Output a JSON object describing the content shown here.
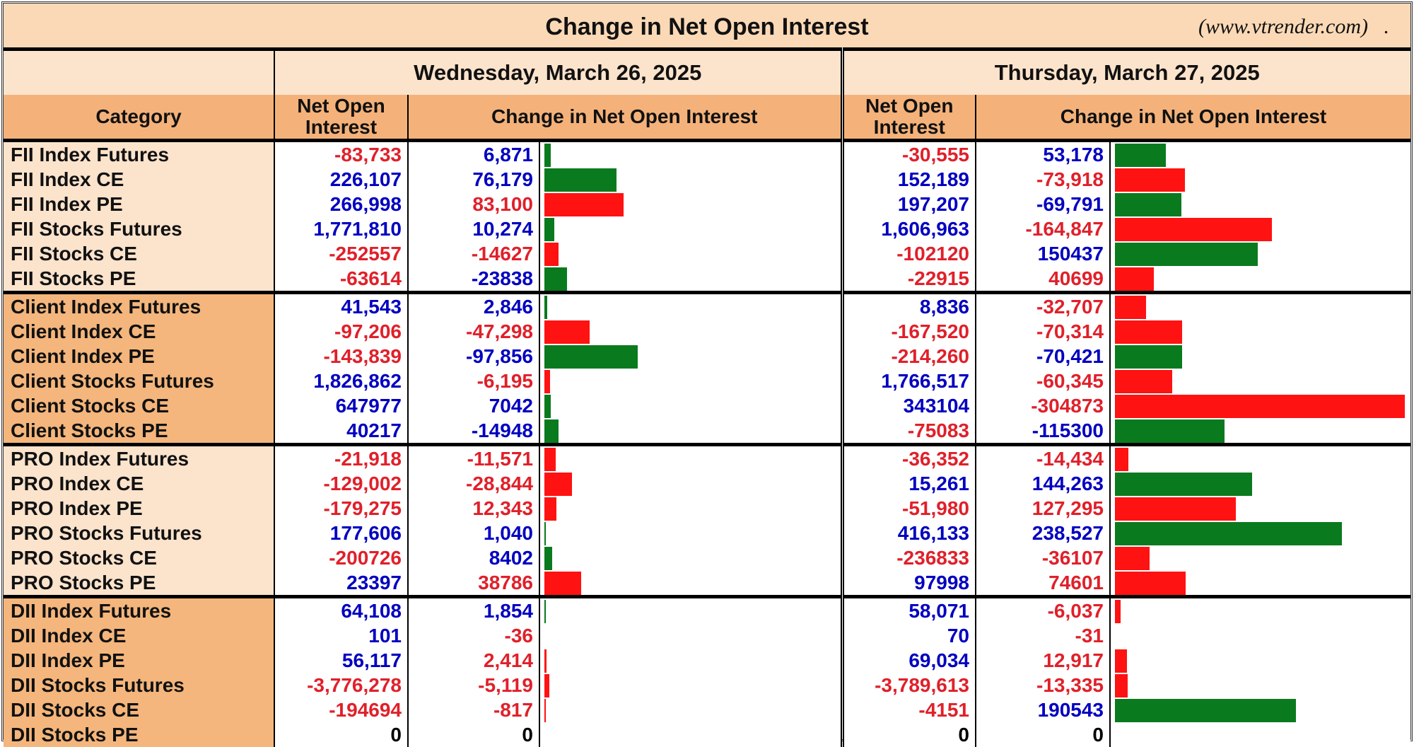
{
  "header": {
    "title": "Change in Net Open Interest",
    "site": "(www.vtrender.com)",
    "dot": ".",
    "category_label": "Category",
    "noi_label_1": "Net Open",
    "noi_label_2": "Interest",
    "change_label": "Change in Net Open Interest",
    "dates": [
      "Wednesday, March 26, 2025",
      "Thursday, March 27, 2025"
    ]
  },
  "colors": {
    "blue": "#0000c0",
    "red": "#e0202a",
    "black": "#000000",
    "bar_green": "#0a7a1e",
    "bar_red": "#ff1212",
    "light": "#fbe3cc",
    "dark": "#f4b67c"
  },
  "chart_data": {
    "type": "bar",
    "title": "Change in Net Open Interest",
    "orientation": "horizontal",
    "note": "bar length = |change|; bar color green when value shown in blue, red when shown in red",
    "groups": [
      {
        "name": "FII",
        "shade": "light",
        "rows": [
          {
            "category": "FII Index Futures",
            "d1": {
              "noi": "-83,733",
              "noi_c": "red",
              "chg": "6,871",
              "chg_c": "blue",
              "v": 6871
            },
            "d2": {
              "noi": "-30,555",
              "noi_c": "red",
              "chg": "53,178",
              "chg_c": "blue",
              "v": 53178
            }
          },
          {
            "category": "FII Index CE",
            "d1": {
              "noi": "226,107",
              "noi_c": "blue",
              "chg": "76,179",
              "chg_c": "blue",
              "v": 76179
            },
            "d2": {
              "noi": "152,189",
              "noi_c": "blue",
              "chg": "-73,918",
              "chg_c": "red",
              "v": -73918
            }
          },
          {
            "category": "FII Index PE",
            "d1": {
              "noi": "266,998",
              "noi_c": "blue",
              "chg": "83,100",
              "chg_c": "red",
              "v": 83100
            },
            "d2": {
              "noi": "197,207",
              "noi_c": "blue",
              "chg": "-69,791",
              "chg_c": "blue",
              "v": -69791
            }
          },
          {
            "category": "FII Stocks Futures",
            "d1": {
              "noi": "1,771,810",
              "noi_c": "blue",
              "chg": "10,274",
              "chg_c": "blue",
              "v": 10274
            },
            "d2": {
              "noi": "1,606,963",
              "noi_c": "blue",
              "chg": "-164,847",
              "chg_c": "red",
              "v": -164847
            }
          },
          {
            "category": "FII Stocks CE",
            "d1": {
              "noi": "-252557",
              "noi_c": "red",
              "chg": "-14627",
              "chg_c": "red",
              "v": -14627
            },
            "d2": {
              "noi": "-102120",
              "noi_c": "red",
              "chg": "150437",
              "chg_c": "blue",
              "v": 150437
            }
          },
          {
            "category": "FII Stocks PE",
            "d1": {
              "noi": "-63614",
              "noi_c": "red",
              "chg": "-23838",
              "chg_c": "blue",
              "v": -23838
            },
            "d2": {
              "noi": "-22915",
              "noi_c": "red",
              "chg": "40699",
              "chg_c": "red",
              "v": 40699
            }
          }
        ]
      },
      {
        "name": "Client",
        "shade": "dark",
        "rows": [
          {
            "category": "Client Index Futures",
            "d1": {
              "noi": "41,543",
              "noi_c": "blue",
              "chg": "2,846",
              "chg_c": "blue",
              "v": 2846
            },
            "d2": {
              "noi": "8,836",
              "noi_c": "blue",
              "chg": "-32,707",
              "chg_c": "red",
              "v": -32707
            }
          },
          {
            "category": "Client Index CE",
            "d1": {
              "noi": "-97,206",
              "noi_c": "red",
              "chg": "-47,298",
              "chg_c": "red",
              "v": -47298
            },
            "d2": {
              "noi": "-167,520",
              "noi_c": "red",
              "chg": "-70,314",
              "chg_c": "red",
              "v": -70314
            }
          },
          {
            "category": "Client Index PE",
            "d1": {
              "noi": "-143,839",
              "noi_c": "red",
              "chg": "-97,856",
              "chg_c": "blue",
              "v": -97856
            },
            "d2": {
              "noi": "-214,260",
              "noi_c": "red",
              "chg": "-70,421",
              "chg_c": "blue",
              "v": -70421
            }
          },
          {
            "category": "Client Stocks Futures",
            "d1": {
              "noi": "1,826,862",
              "noi_c": "blue",
              "chg": "-6,195",
              "chg_c": "red",
              "v": -6195
            },
            "d2": {
              "noi": "1,766,517",
              "noi_c": "blue",
              "chg": "-60,345",
              "chg_c": "red",
              "v": -60345
            }
          },
          {
            "category": "Client Stocks CE",
            "d1": {
              "noi": "647977",
              "noi_c": "blue",
              "chg": "7042",
              "chg_c": "blue",
              "v": 7042
            },
            "d2": {
              "noi": "343104",
              "noi_c": "blue",
              "chg": "-304873",
              "chg_c": "red",
              "v": -304873
            }
          },
          {
            "category": "Client Stocks PE",
            "d1": {
              "noi": "40217",
              "noi_c": "blue",
              "chg": "-14948",
              "chg_c": "blue",
              "v": -14948
            },
            "d2": {
              "noi": "-75083",
              "noi_c": "red",
              "chg": "-115300",
              "chg_c": "blue",
              "v": -115300
            }
          }
        ]
      },
      {
        "name": "PRO",
        "shade": "light",
        "rows": [
          {
            "category": "PRO Index Futures",
            "d1": {
              "noi": "-21,918",
              "noi_c": "red",
              "chg": "-11,571",
              "chg_c": "red",
              "v": -11571
            },
            "d2": {
              "noi": "-36,352",
              "noi_c": "red",
              "chg": "-14,434",
              "chg_c": "red",
              "v": -14434
            }
          },
          {
            "category": "PRO Index CE",
            "d1": {
              "noi": "-129,002",
              "noi_c": "red",
              "chg": "-28,844",
              "chg_c": "red",
              "v": -28844
            },
            "d2": {
              "noi": "15,261",
              "noi_c": "blue",
              "chg": "144,263",
              "chg_c": "blue",
              "v": 144263
            }
          },
          {
            "category": "PRO Index PE",
            "d1": {
              "noi": "-179,275",
              "noi_c": "red",
              "chg": "12,343",
              "chg_c": "red",
              "v": 12343
            },
            "d2": {
              "noi": "-51,980",
              "noi_c": "red",
              "chg": "127,295",
              "chg_c": "red",
              "v": 127295
            }
          },
          {
            "category": "PRO Stocks Futures",
            "d1": {
              "noi": "177,606",
              "noi_c": "blue",
              "chg": "1,040",
              "chg_c": "blue",
              "v": 1040
            },
            "d2": {
              "noi": "416,133",
              "noi_c": "blue",
              "chg": "238,527",
              "chg_c": "blue",
              "v": 238527
            }
          },
          {
            "category": "PRO Stocks CE",
            "d1": {
              "noi": "-200726",
              "noi_c": "red",
              "chg": "8402",
              "chg_c": "blue",
              "v": 8402
            },
            "d2": {
              "noi": "-236833",
              "noi_c": "red",
              "chg": "-36107",
              "chg_c": "red",
              "v": -36107
            }
          },
          {
            "category": "PRO Stocks PE",
            "d1": {
              "noi": "23397",
              "noi_c": "blue",
              "chg": "38786",
              "chg_c": "red",
              "v": 38786
            },
            "d2": {
              "noi": "97998",
              "noi_c": "blue",
              "chg": "74601",
              "chg_c": "red",
              "v": 74601
            }
          }
        ]
      },
      {
        "name": "DII",
        "shade": "dark",
        "rows": [
          {
            "category": "DII Index Futures",
            "d1": {
              "noi": "64,108",
              "noi_c": "blue",
              "chg": "1,854",
              "chg_c": "blue",
              "v": 1854
            },
            "d2": {
              "noi": "58,071",
              "noi_c": "blue",
              "chg": "-6,037",
              "chg_c": "red",
              "v": -6037
            }
          },
          {
            "category": "DII Index CE",
            "d1": {
              "noi": "101",
              "noi_c": "blue",
              "chg": "-36",
              "chg_c": "red",
              "v": -36
            },
            "d2": {
              "noi": "70",
              "noi_c": "blue",
              "chg": "-31",
              "chg_c": "red",
              "v": -31
            }
          },
          {
            "category": "DII Index PE",
            "d1": {
              "noi": "56,117",
              "noi_c": "blue",
              "chg": "2,414",
              "chg_c": "red",
              "v": 2414
            },
            "d2": {
              "noi": "69,034",
              "noi_c": "blue",
              "chg": "12,917",
              "chg_c": "red",
              "v": 12917
            }
          },
          {
            "category": "DII Stocks Futures",
            "d1": {
              "noi": "-3,776,278",
              "noi_c": "red",
              "chg": "-5,119",
              "chg_c": "red",
              "v": -5119
            },
            "d2": {
              "noi": "-3,789,613",
              "noi_c": "red",
              "chg": "-13,335",
              "chg_c": "red",
              "v": -13335
            }
          },
          {
            "category": "DII Stocks CE",
            "d1": {
              "noi": "-194694",
              "noi_c": "red",
              "chg": "-817",
              "chg_c": "red",
              "v": -817
            },
            "d2": {
              "noi": "-4151",
              "noi_c": "red",
              "chg": "190543",
              "chg_c": "blue",
              "v": 190543
            }
          },
          {
            "category": "DII Stocks PE",
            "d1": {
              "noi": "0",
              "noi_c": "black",
              "chg": "0",
              "chg_c": "black",
              "v": 0
            },
            "d2": {
              "noi": "0",
              "noi_c": "black",
              "chg": "0",
              "chg_c": "black",
              "v": 0
            }
          }
        ]
      }
    ]
  }
}
